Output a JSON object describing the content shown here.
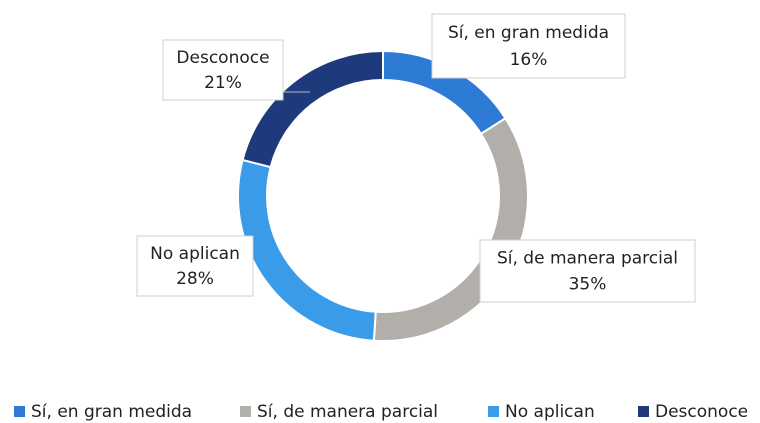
{
  "chart_data": {
    "type": "pie",
    "donut": true,
    "categories": [
      "Sí, en gran medida",
      "Sí, de manera parcial",
      "No aplican",
      "Desconoce"
    ],
    "values": [
      16,
      35,
      28,
      21
    ],
    "value_labels": [
      "16%",
      "35%",
      "28%",
      "21%"
    ],
    "colors": [
      "#2e7bd6",
      "#b2afaa",
      "#3a9ce8",
      "#1e3a7c"
    ],
    "legend": "bottom"
  }
}
